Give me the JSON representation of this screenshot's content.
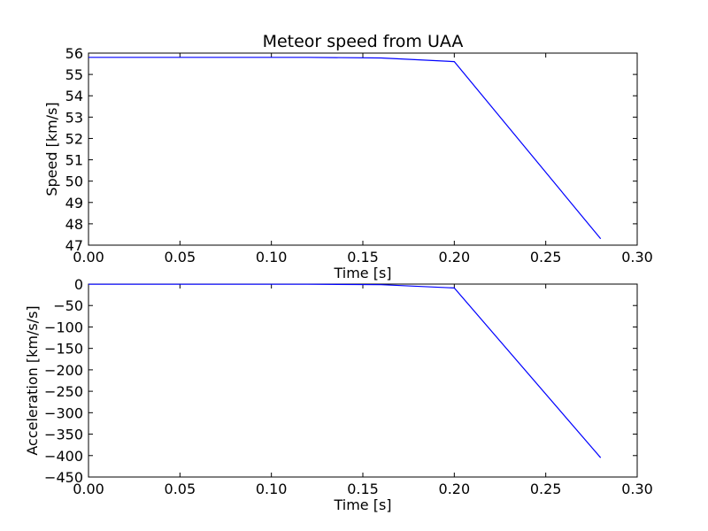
{
  "title": "Meteor speed from  UAA",
  "chart_data": [
    {
      "type": "line",
      "title": "Meteor speed from  UAA",
      "xlabel": "Time [s]",
      "ylabel": "Speed [km/s]",
      "xlim": [
        0.0,
        0.3
      ],
      "ylim": [
        47,
        56
      ],
      "xticks": [
        "0.00",
        "0.05",
        "0.10",
        "0.15",
        "0.20",
        "0.25",
        "0.30"
      ],
      "yticks": [
        "47",
        "48",
        "49",
        "50",
        "51",
        "52",
        "53",
        "54",
        "55",
        "56"
      ],
      "grid": false,
      "series": [
        {
          "color": "#0000ff",
          "x": [
            0.0,
            0.04,
            0.08,
            0.12,
            0.16,
            0.2,
            0.28
          ],
          "y": [
            55.8,
            55.8,
            55.8,
            55.8,
            55.77,
            55.6,
            47.3
          ]
        }
      ]
    },
    {
      "type": "line",
      "title": "",
      "xlabel": "Time [s]",
      "ylabel": "Acceleration [km/s/s]",
      "xlim": [
        0.0,
        0.3
      ],
      "ylim": [
        -450,
        0
      ],
      "xticks": [
        "0.00",
        "0.05",
        "0.10",
        "0.15",
        "0.20",
        "0.25",
        "0.30"
      ],
      "yticks": [
        "-450",
        "-400",
        "-350",
        "-300",
        "-250",
        "-200",
        "-150",
        "-100",
        "-50",
        "0"
      ],
      "grid": false,
      "series": [
        {
          "color": "#0000ff",
          "x": [
            0.0,
            0.04,
            0.08,
            0.12,
            0.16,
            0.2,
            0.28
          ],
          "y": [
            -0.5,
            -0.5,
            -0.5,
            -0.5,
            -1.5,
            -9,
            -405
          ]
        }
      ]
    }
  ]
}
